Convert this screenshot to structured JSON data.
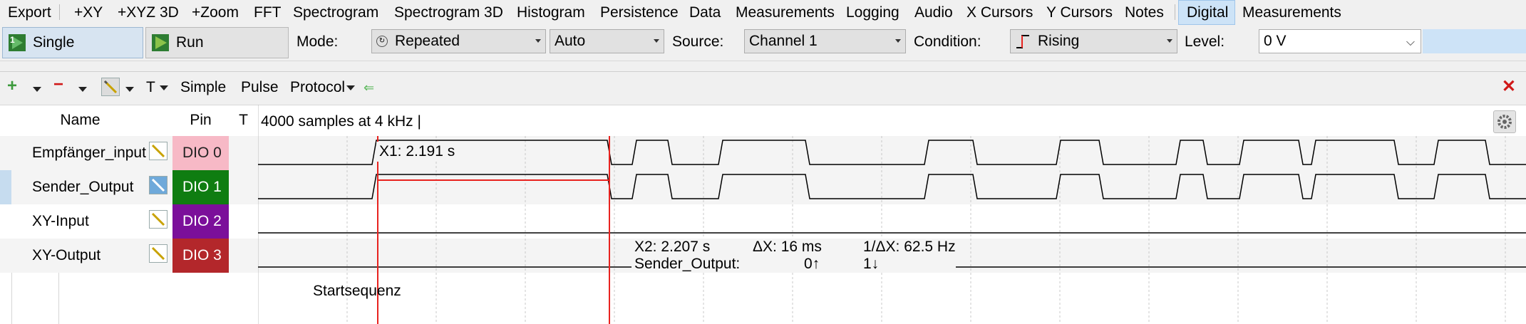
{
  "menubar": {
    "items": [
      {
        "label": "Export"
      },
      {
        "label": "+XY"
      },
      {
        "label": "+XYZ 3D"
      },
      {
        "label": "+Zoom"
      },
      {
        "label": "FFT"
      },
      {
        "label": "Spectrogram"
      },
      {
        "label": "Spectrogram 3D"
      },
      {
        "label": "Histogram"
      },
      {
        "label": "Persistence"
      },
      {
        "label": "Data"
      },
      {
        "label": "Measurements"
      },
      {
        "label": "Logging"
      },
      {
        "label": "Audio"
      },
      {
        "label": "X Cursors"
      },
      {
        "label": "Y Cursors"
      },
      {
        "label": "Notes"
      },
      {
        "label": "Digital"
      },
      {
        "label": "Measurements"
      }
    ]
  },
  "toolbar": {
    "single_label": "Single",
    "run_label": "Run",
    "mode_label": "Mode:",
    "mode_value": "Repeated",
    "auto_value": "Auto",
    "source_label": "Source:",
    "source_value": "Channel 1",
    "condition_label": "Condition:",
    "condition_value": "Rising",
    "level_label": "Level:",
    "level_value": "0 V"
  },
  "logic_toolbar": {
    "add": "+",
    "remove": "−",
    "t_label": "T",
    "simple_label": "Simple",
    "pulse_label": "Pulse",
    "protocol_label": "Protocol",
    "back_arrow": "⇐",
    "close": "✕"
  },
  "table": {
    "col_name": "Name",
    "col_pin": "Pin",
    "col_t": "T",
    "sample_info": "4000 samples at 4 kHz |",
    "signals": [
      {
        "name": "Empfänger_input",
        "pin": "DIO  0"
      },
      {
        "name": "Sender_Output",
        "pin": "DIO  1"
      },
      {
        "name": "XY-Input",
        "pin": "DIO  2"
      },
      {
        "name": "XY-Output",
        "pin": "DIO  3"
      }
    ]
  },
  "cursors": {
    "x1_label": "X1: 2.191 s",
    "x2_label": "X2: 2.207 s",
    "dx_label": "ΔX: 16 ms",
    "inv_dx_label": "1/ΔX: 62.5 Hz",
    "signal_name": "Sender_Output:",
    "value_0": "0↑",
    "value_1": "1↓",
    "note": "Startsequenz"
  },
  "colors": {
    "cursor": "#e8231f",
    "selection": "#cde3f7"
  }
}
